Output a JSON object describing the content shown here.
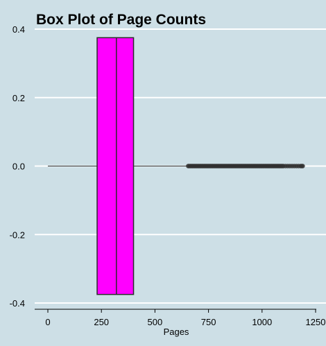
{
  "chart_data": {
    "type": "box",
    "title": "Box Plot of Page Counts",
    "xlabel": "Pages",
    "ylabel": "",
    "xlim": [
      -50,
      1250
    ],
    "ylim": [
      -0.4,
      0.4
    ],
    "x_ticks": [
      0,
      250,
      500,
      750,
      1000,
      1250
    ],
    "x_tick_labels": [
      "0",
      "250",
      "500",
      "750",
      "1000",
      "1250"
    ],
    "y_ticks": [
      -0.4,
      -0.2,
      0.0,
      0.2,
      0.4
    ],
    "y_tick_labels": [
      "-0.4",
      "-0.2",
      "0.0",
      "0.2",
      "0.4"
    ],
    "grid": "horizontal",
    "box": {
      "whisker_low": 0,
      "q1": 230,
      "median": 320,
      "q3": 400,
      "whisker_high": 650,
      "y_center": 0.0,
      "half_width": 0.375,
      "fill": "#ff00ff",
      "edge": "#2b2b2b"
    },
    "outliers": [
      655,
      660,
      665,
      670,
      675,
      680,
      685,
      690,
      695,
      700,
      705,
      710,
      715,
      720,
      725,
      730,
      735,
      740,
      745,
      750,
      755,
      760,
      765,
      770,
      775,
      780,
      785,
      790,
      795,
      800,
      805,
      810,
      815,
      820,
      825,
      830,
      835,
      840,
      845,
      850,
      855,
      860,
      865,
      870,
      875,
      880,
      885,
      890,
      895,
      900,
      905,
      910,
      915,
      920,
      925,
      930,
      935,
      940,
      945,
      950,
      955,
      960,
      965,
      970,
      975,
      980,
      985,
      990,
      995,
      1000,
      1005,
      1010,
      1015,
      1020,
      1025,
      1030,
      1035,
      1040,
      1045,
      1050,
      1055,
      1060,
      1065,
      1070,
      1075,
      1080,
      1085,
      1090,
      1095,
      1100,
      1110,
      1120,
      1130,
      1140,
      1150,
      1160,
      1170,
      1180,
      1185,
      1190
    ],
    "colors": {
      "background": "#cddfe6",
      "grid": "#ffffff",
      "outlier": "#333333"
    }
  }
}
